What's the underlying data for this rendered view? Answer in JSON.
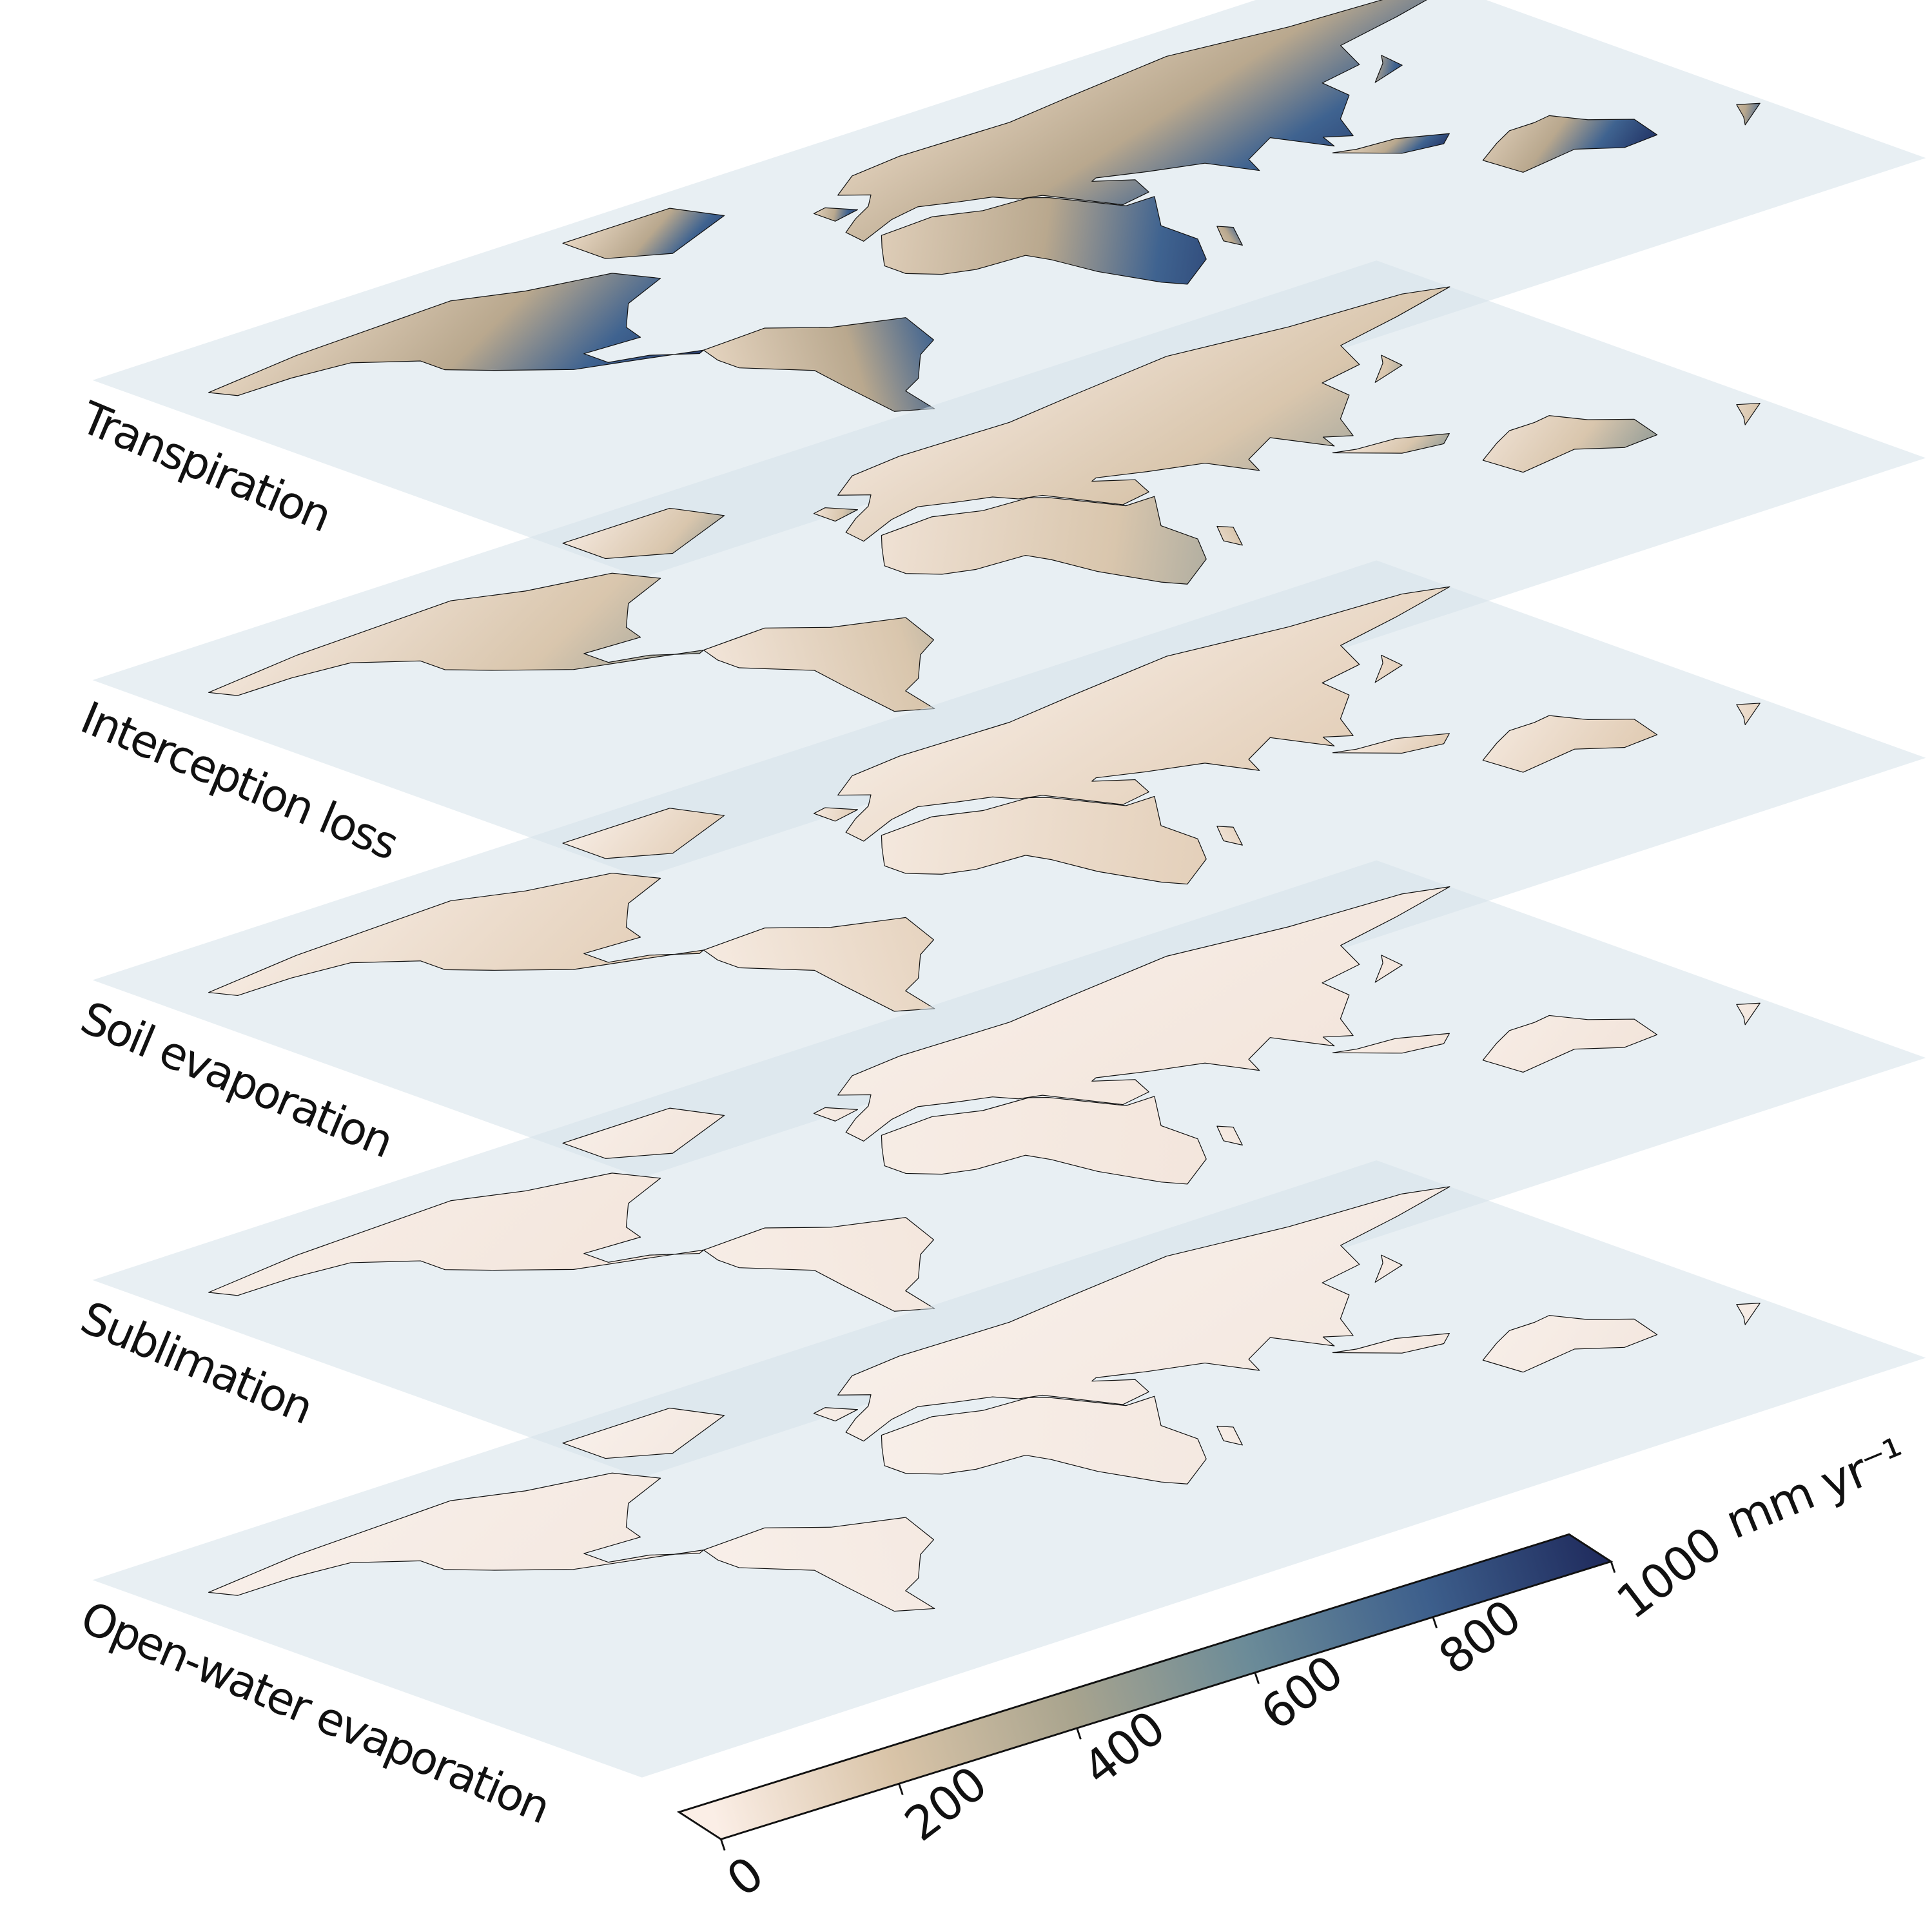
{
  "layers": [
    {
      "label": "Transpiration"
    },
    {
      "label": "Interception loss"
    },
    {
      "label": "Soil evaporation"
    },
    {
      "label": "Sublimation"
    },
    {
      "label": "Open-water evaporation"
    }
  ],
  "colorbar": {
    "lim": [
      0,
      1000
    ],
    "ticks": [
      0,
      200,
      400,
      600,
      800,
      1000
    ],
    "unit": "mm yr⁻¹"
  }
}
